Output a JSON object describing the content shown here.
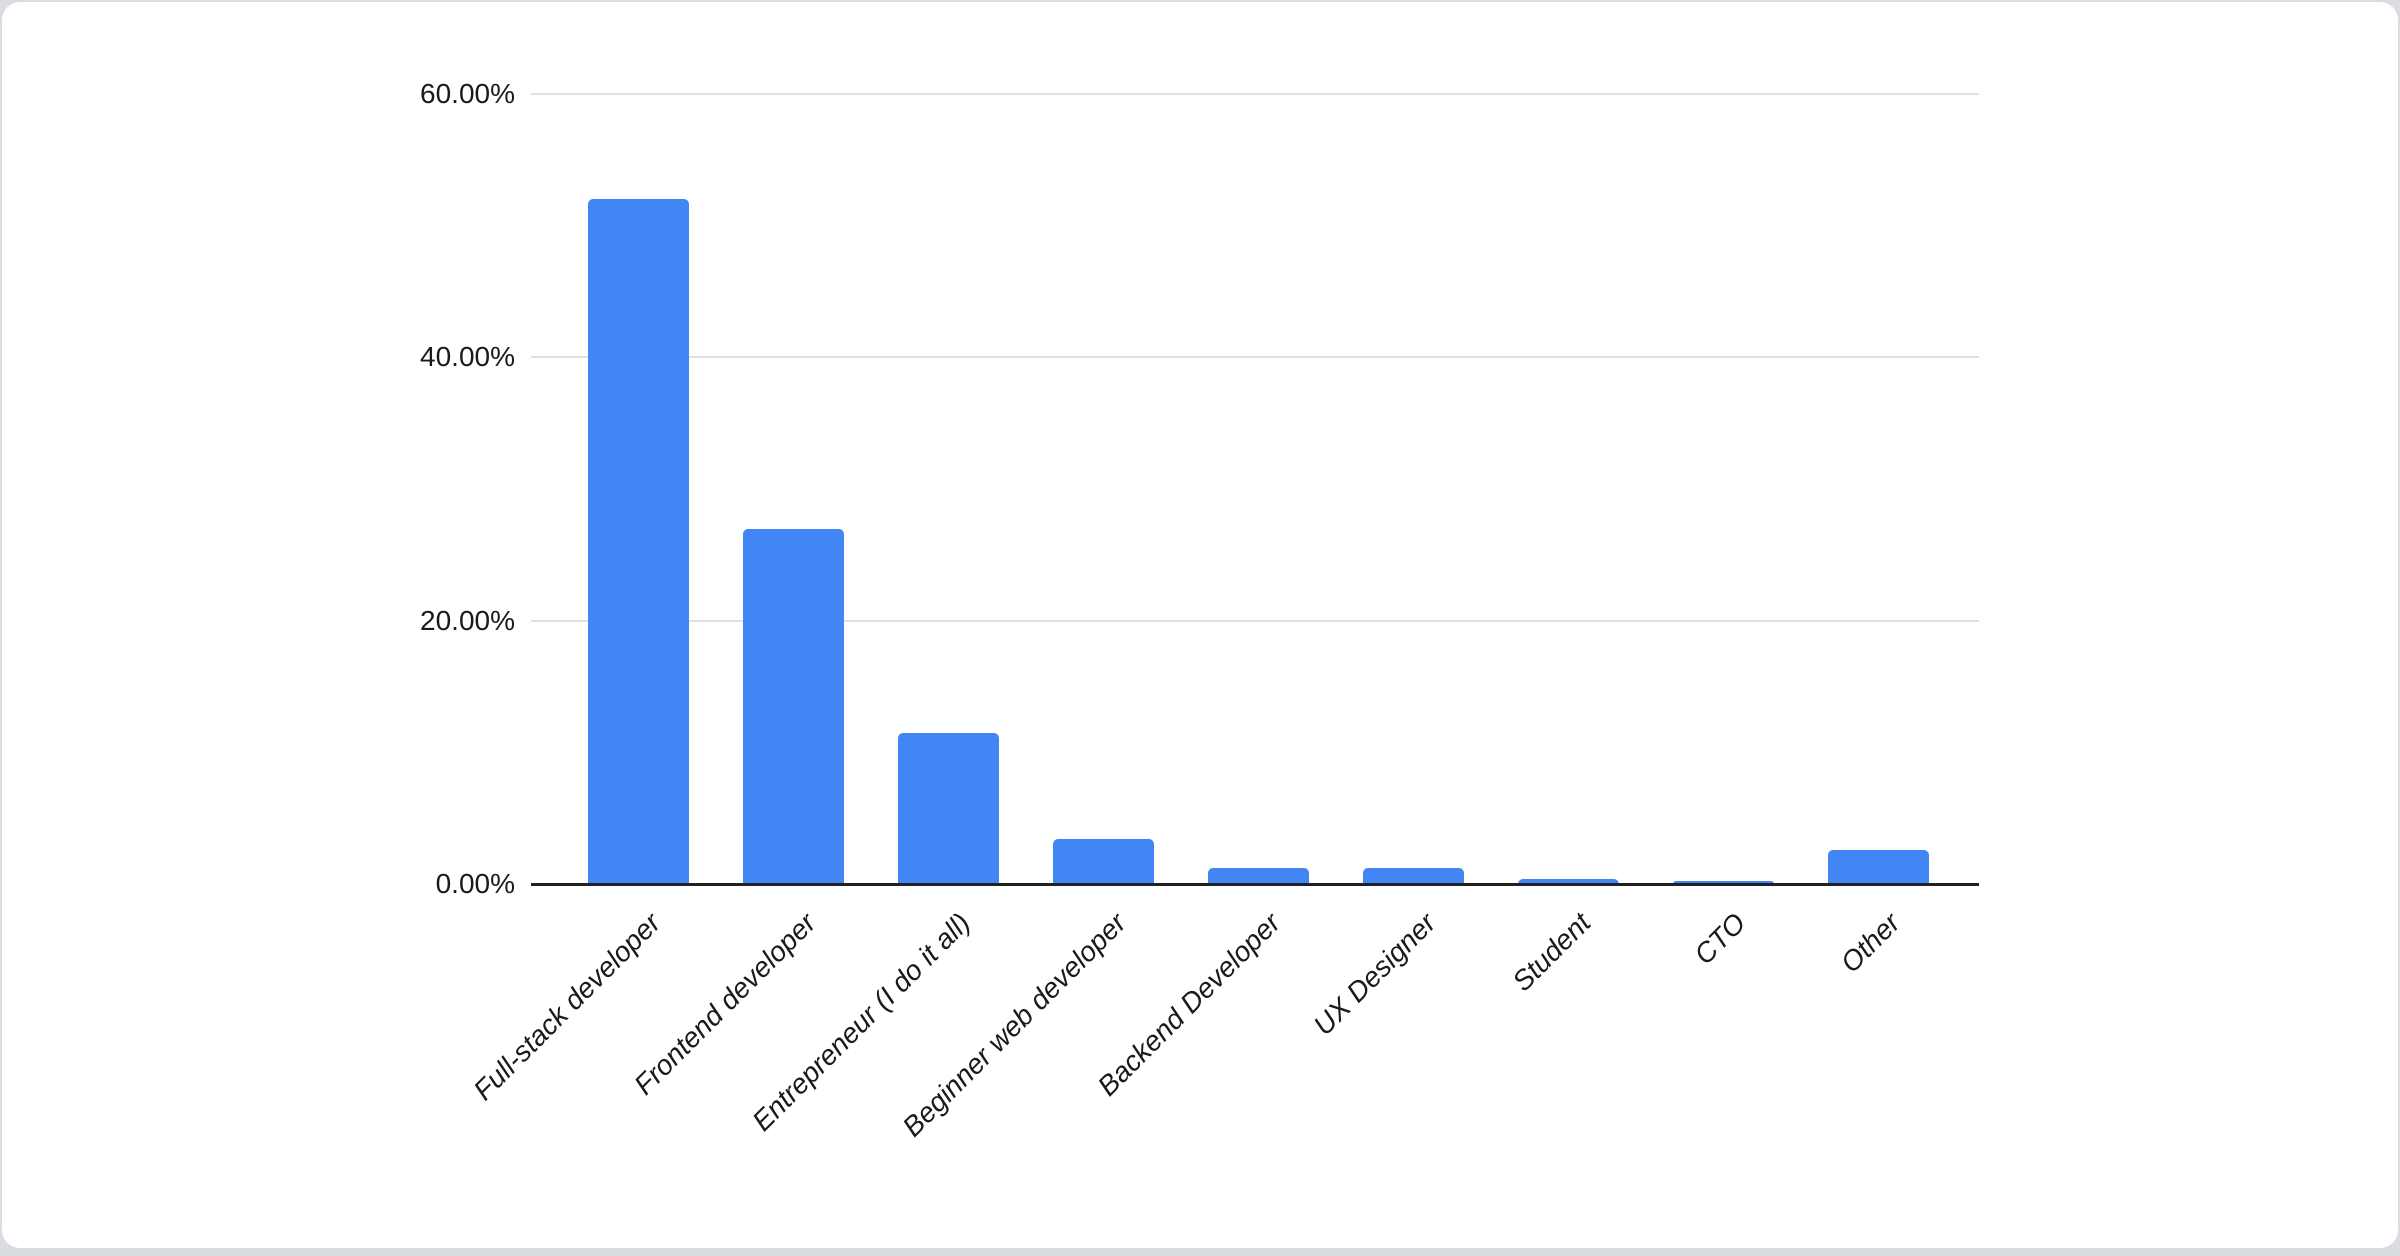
{
  "page": {
    "background_color": "#D9DDE2",
    "card_color": "#FFFFFF"
  },
  "chart_data": {
    "type": "bar",
    "title": "",
    "categories": [
      "Full-stack developer",
      "Frontend developer",
      "Entrepreneur (I do it all)",
      "Beginner web developer",
      "Backend Developer",
      "UX Designer",
      "Student",
      "CTO",
      "Other"
    ],
    "values": [
      52.0,
      27.0,
      11.5,
      3.4,
      1.2,
      1.2,
      0.4,
      0.2,
      2.6
    ],
    "value_unit": "%",
    "y_ticks": [
      {
        "label": "60.00%",
        "value": 60
      },
      {
        "label": "40.00%",
        "value": 40
      },
      {
        "label": "20.00%",
        "value": 20
      },
      {
        "label": "0.00%",
        "value": 0
      }
    ],
    "ylim": [
      0,
      60
    ],
    "xlabel": "",
    "ylabel": "",
    "grid": true,
    "legend": "none",
    "bar_color": "#4285F4",
    "gridline_color": "#E0E0E0",
    "axis_line_color": "#212121",
    "text_color": "#1A1A1A"
  }
}
